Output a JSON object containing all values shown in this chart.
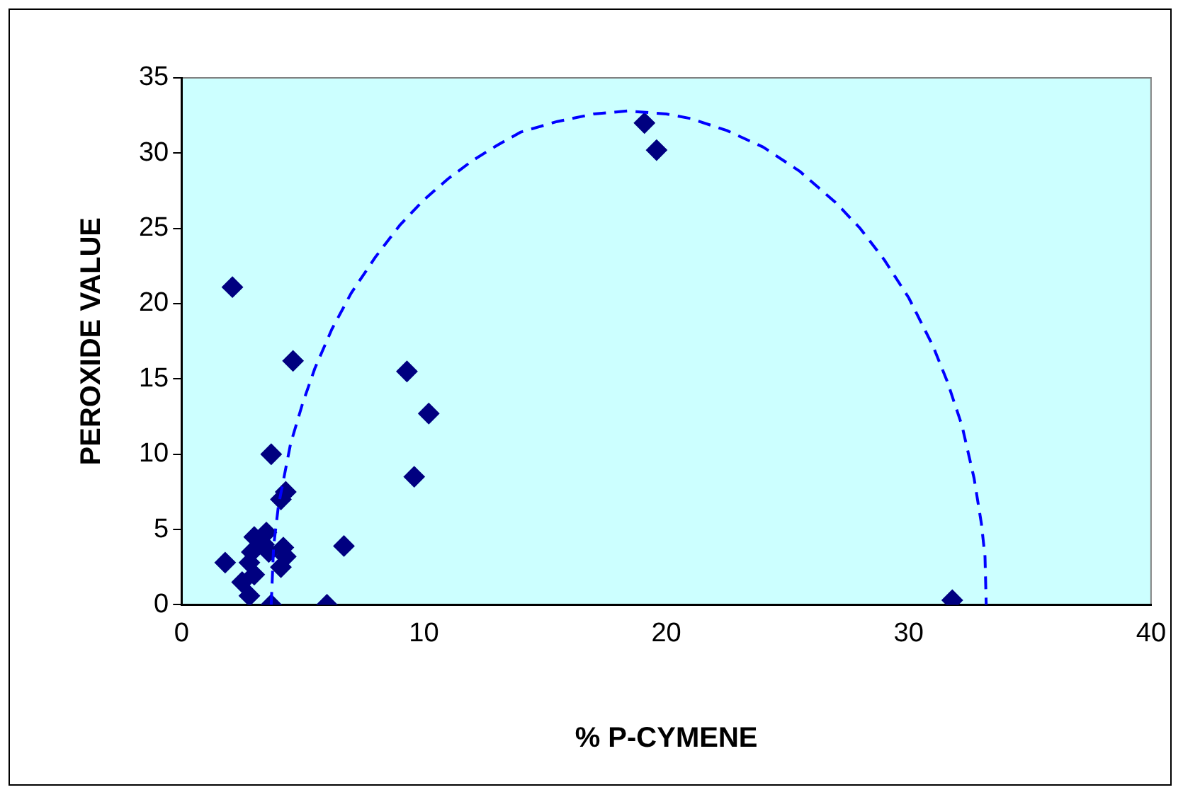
{
  "chart_data": {
    "type": "scatter",
    "xlabel": "% P-CYMENE",
    "ylabel": "PEROXIDE VALUE",
    "xlim": [
      0,
      40
    ],
    "xticks": [
      0,
      10,
      20,
      30,
      40
    ],
    "ylim": [
      0,
      35
    ],
    "yticks": [
      0,
      5,
      10,
      15,
      20,
      25,
      30,
      35
    ],
    "grid": false,
    "legend": false,
    "marker": "diamond",
    "series": [
      {
        "color": "#000080",
        "x": [
          19.1,
          19.6,
          2.1,
          4.6,
          9.3,
          10.2,
          3.7,
          9.6,
          4.1,
          4.3,
          6.7,
          31.8,
          3.7,
          6.0,
          1.8,
          2.5,
          2.8,
          3.0,
          2.9,
          3.5,
          3.0,
          3.4,
          4.2,
          4.3,
          4.1,
          3.6,
          2.8
        ],
        "values": [
          32.0,
          30.2,
          21.1,
          16.2,
          15.5,
          12.7,
          10.0,
          8.5,
          7.0,
          7.5,
          3.9,
          0.3,
          0.0,
          0.0,
          2.8,
          1.5,
          0.6,
          2.0,
          3.5,
          4.8,
          4.5,
          4.0,
          3.8,
          3.2,
          2.5,
          3.5,
          2.8
        ]
      },
      {
        "type": "line",
        "color": "#0000ff",
        "marker": "none",
        "line_style": "dashed",
        "x": [
          3.7,
          3.8,
          4.0,
          4.5,
          5.0,
          5.5,
          6.2,
          7,
          8,
          9,
          10,
          11,
          12,
          13,
          14,
          15.5,
          17,
          18.4,
          20,
          21,
          22.5,
          24,
          25.5,
          27,
          28,
          29,
          30,
          31,
          31.6,
          32.2,
          32.7,
          33,
          33.15,
          33.2
        ],
        "values": [
          0,
          3.9,
          6.6,
          10.7,
          13.4,
          15.7,
          18.3,
          20.7,
          23.1,
          25.2,
          26.9,
          28.3,
          29.5,
          30.5,
          31.4,
          32.1,
          32.6,
          32.8,
          32.6,
          32.3,
          31.5,
          30.4,
          28.8,
          26.7,
          25.0,
          22.9,
          20.4,
          17.2,
          14.8,
          11.9,
          8.4,
          5.4,
          3.2,
          0
        ]
      }
    ]
  }
}
